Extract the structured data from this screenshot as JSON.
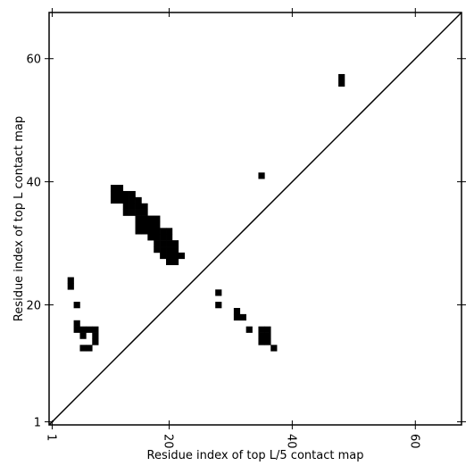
{
  "chart_data": {
    "type": "scatter",
    "marker": "square",
    "color": "#000000",
    "xlabel": "Residue index of top L/5 contact map",
    "ylabel": "Residue index of top L contact map",
    "xlim": [
      0.5,
      67.5
    ],
    "ylim": [
      0.5,
      67.5
    ],
    "xticks": [
      1,
      20,
      40,
      60
    ],
    "yticks": [
      1,
      20,
      40,
      60
    ],
    "x": [
      48,
      48,
      35,
      4,
      4,
      5,
      28,
      28,
      31,
      31,
      32,
      33,
      35,
      35,
      35,
      36,
      36,
      36,
      37,
      5,
      5,
      6,
      7,
      8,
      6,
      8,
      8,
      6,
      7,
      11,
      11,
      11,
      12,
      12,
      12,
      13,
      13,
      13,
      13,
      14,
      14,
      14,
      14,
      15,
      15,
      15,
      15,
      15,
      15,
      16,
      16,
      16,
      16,
      16,
      17,
      17,
      17,
      17,
      18,
      18,
      18,
      18,
      18,
      18,
      19,
      19,
      19,
      19,
      19,
      20,
      20,
      20,
      20,
      20,
      20,
      21,
      21,
      21,
      21,
      22
    ],
    "y": [
      56,
      57,
      41,
      23,
      24,
      20,
      22,
      20,
      19,
      18,
      18,
      16,
      14,
      15,
      16,
      14,
      15,
      16,
      13,
      17,
      16,
      16,
      16,
      16,
      15,
      15,
      14,
      13,
      13,
      37,
      38,
      39,
      37,
      38,
      39,
      35,
      36,
      37,
      38,
      35,
      36,
      37,
      38,
      32,
      33,
      34,
      35,
      36,
      37,
      32,
      33,
      34,
      35,
      36,
      31,
      32,
      33,
      34,
      29,
      30,
      31,
      32,
      33,
      34,
      28,
      29,
      30,
      31,
      32,
      27,
      28,
      29,
      30,
      31,
      32,
      27,
      28,
      29,
      30,
      28
    ]
  }
}
